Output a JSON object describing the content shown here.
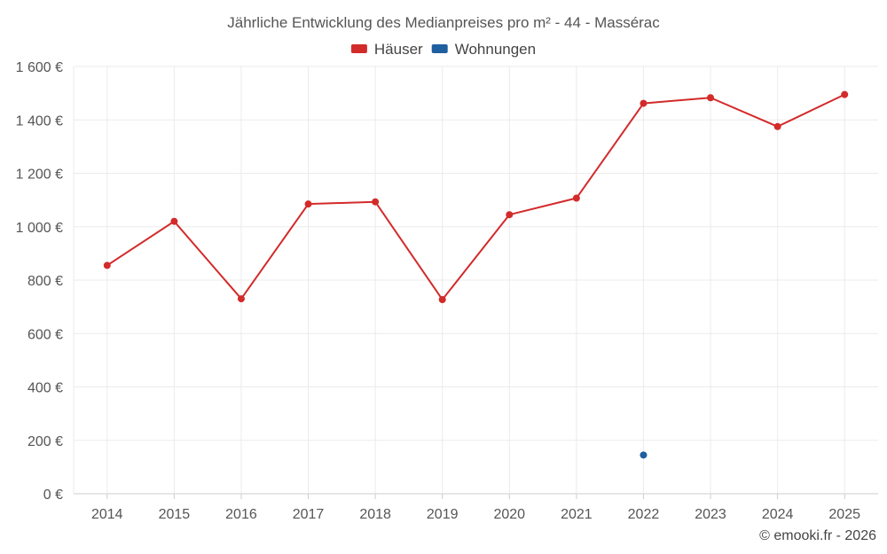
{
  "chart_data": {
    "type": "line",
    "title": "Jährliche Entwicklung des Medianpreises pro m² - 44 - Massérac",
    "xlabel": "",
    "ylabel": "",
    "categories": [
      "2014",
      "2015",
      "2016",
      "2017",
      "2018",
      "2019",
      "2020",
      "2021",
      "2022",
      "2023",
      "2024",
      "2025"
    ],
    "ylim": [
      0,
      1600
    ],
    "yticks": [
      0,
      200,
      400,
      600,
      800,
      1000,
      1200,
      1400,
      1600
    ],
    "ytick_labels": [
      "0 €",
      "200 €",
      "400 €",
      "600 €",
      "800 €",
      "1 000 €",
      "1 200 €",
      "1 400 €",
      "1 600 €"
    ],
    "grid": true,
    "legend_position": "top-center",
    "series": [
      {
        "name": "Häuser",
        "color": "#d32a2a",
        "values": [
          855,
          1020,
          730,
          1085,
          1093,
          727,
          1045,
          1107,
          1462,
          1483,
          1375,
          1495
        ]
      },
      {
        "name": "Wohnungen",
        "color": "#1f5f9f",
        "values": [
          null,
          null,
          null,
          null,
          null,
          null,
          null,
          null,
          145,
          null,
          null,
          null
        ]
      }
    ]
  },
  "footer": {
    "credit": "© emooki.fr - 2026"
  }
}
